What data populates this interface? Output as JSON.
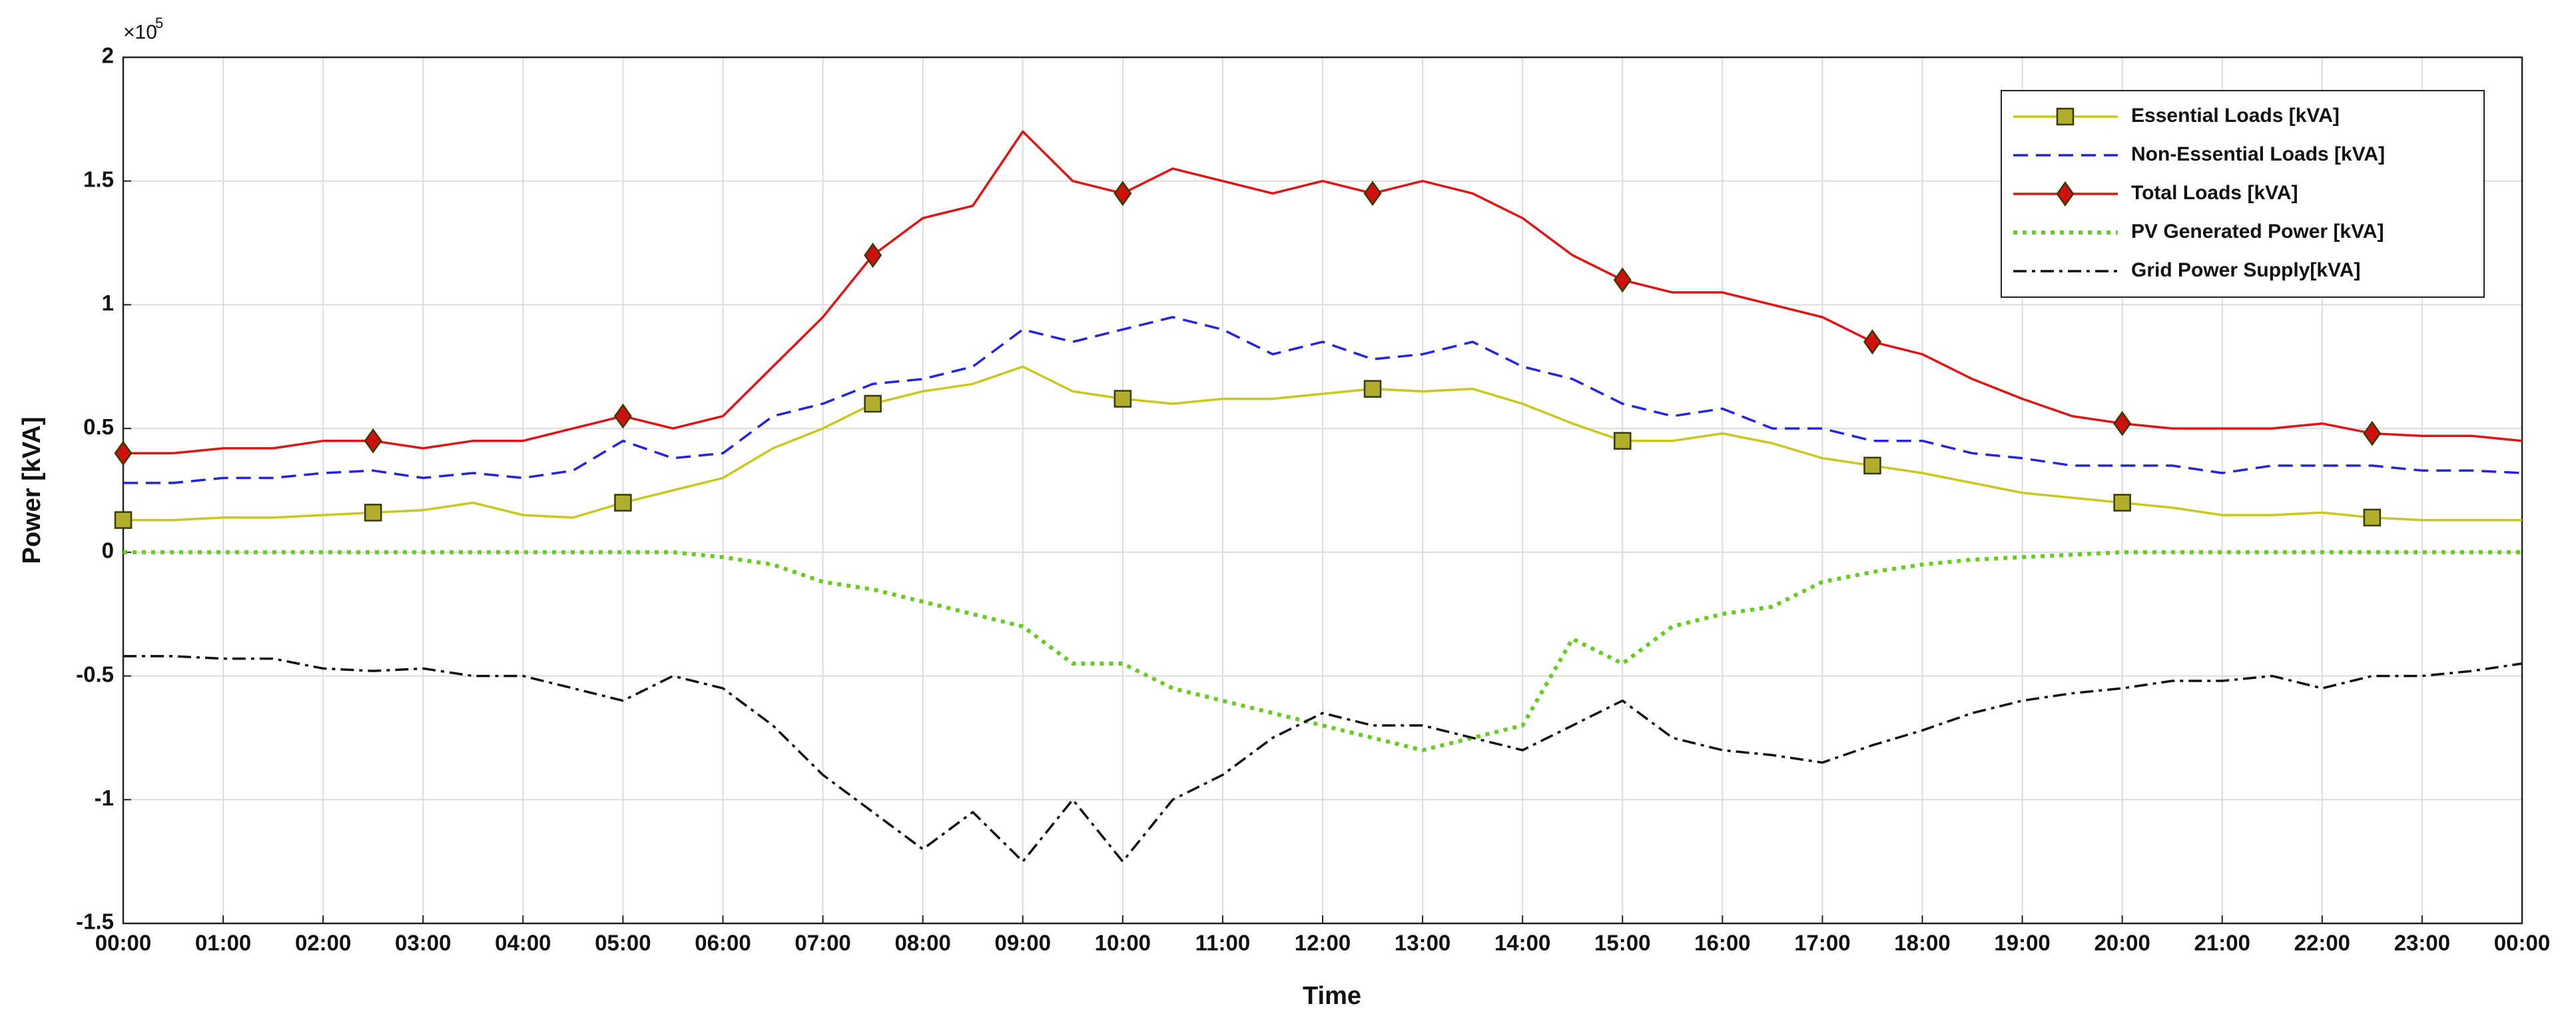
{
  "chart_data": {
    "type": "line",
    "xlabel": "Time",
    "ylabel": "Power [kVA]",
    "yscale_text": "×10",
    "yscale_exponent": "5",
    "x": [
      0,
      0.5,
      1,
      1.5,
      2,
      2.5,
      3,
      3.5,
      4,
      4.5,
      5,
      5.5,
      6,
      6.5,
      7,
      7.5,
      8,
      8.5,
      9,
      9.5,
      10,
      10.5,
      11,
      11.5,
      12,
      12.5,
      13,
      13.5,
      14,
      14.5,
      15,
      15.5,
      16,
      16.5,
      17,
      17.5,
      18,
      18.5,
      19,
      19.5,
      20,
      20.5,
      21,
      21.5,
      22,
      22.5,
      23,
      23.5,
      24
    ],
    "xlim": [
      0,
      24
    ],
    "xticks": [
      {
        "value": 0,
        "label": "00:00"
      },
      {
        "value": 1,
        "label": "01:00"
      },
      {
        "value": 2,
        "label": "02:00"
      },
      {
        "value": 3,
        "label": "03:00"
      },
      {
        "value": 4,
        "label": "04:00"
      },
      {
        "value": 5,
        "label": "05:00"
      },
      {
        "value": 6,
        "label": "06:00"
      },
      {
        "value": 7,
        "label": "07:00"
      },
      {
        "value": 8,
        "label": "08:00"
      },
      {
        "value": 9,
        "label": "09:00"
      },
      {
        "value": 10,
        "label": "10:00"
      },
      {
        "value": 11,
        "label": "11:00"
      },
      {
        "value": 12,
        "label": "12:00"
      },
      {
        "value": 13,
        "label": "13:00"
      },
      {
        "value": 14,
        "label": "14:00"
      },
      {
        "value": 15,
        "label": "15:00"
      },
      {
        "value": 16,
        "label": "16:00"
      },
      {
        "value": 17,
        "label": "17:00"
      },
      {
        "value": 18,
        "label": "18:00"
      },
      {
        "value": 19,
        "label": "19:00"
      },
      {
        "value": 20,
        "label": "20:00"
      },
      {
        "value": 21,
        "label": "21:00"
      },
      {
        "value": 22,
        "label": "22:00"
      },
      {
        "value": 23,
        "label": "23:00"
      },
      {
        "value": 24,
        "label": "00:00"
      }
    ],
    "ylim": [
      -1.5,
      2
    ],
    "yticks": [
      -1.5,
      -1,
      -0.5,
      0,
      0.5,
      1,
      1.5,
      2
    ],
    "grid": true,
    "legend_position": "northeast",
    "marker_every": 5,
    "series": [
      {
        "name": "Essential Loads [kVA]",
        "color": "#c8c81e",
        "marker_color": "#b0ae2a",
        "line_style": "solid",
        "marker": "square",
        "values": [
          0.13,
          0.13,
          0.14,
          0.14,
          0.15,
          0.16,
          0.17,
          0.2,
          0.15,
          0.14,
          0.2,
          0.25,
          0.3,
          0.42,
          0.5,
          0.6,
          0.65,
          0.68,
          0.75,
          0.65,
          0.62,
          0.6,
          0.62,
          0.62,
          0.64,
          0.66,
          0.65,
          0.66,
          0.6,
          0.52,
          0.45,
          0.45,
          0.48,
          0.44,
          0.38,
          0.35,
          0.32,
          0.28,
          0.24,
          0.22,
          0.2,
          0.18,
          0.15,
          0.15,
          0.16,
          0.14,
          0.13,
          0.13,
          0.13
        ]
      },
      {
        "name": "Non-Essential Loads [kVA]",
        "color": "#2424e0",
        "line_style": "dashed",
        "marker": "none",
        "values": [
          0.28,
          0.28,
          0.3,
          0.3,
          0.32,
          0.33,
          0.3,
          0.32,
          0.3,
          0.33,
          0.45,
          0.38,
          0.4,
          0.55,
          0.6,
          0.68,
          0.7,
          0.75,
          0.9,
          0.85,
          0.9,
          0.95,
          0.9,
          0.8,
          0.85,
          0.78,
          0.8,
          0.85,
          0.75,
          0.7,
          0.6,
          0.55,
          0.58,
          0.5,
          0.5,
          0.45,
          0.45,
          0.4,
          0.38,
          0.35,
          0.35,
          0.35,
          0.32,
          0.35,
          0.35,
          0.35,
          0.33,
          0.33,
          0.32
        ]
      },
      {
        "name": "Total Loads [kVA]",
        "color": "#e01414",
        "marker_color": "#d01010",
        "line_style": "solid",
        "marker": "diamond",
        "values": [
          0.4,
          0.4,
          0.42,
          0.42,
          0.45,
          0.45,
          0.42,
          0.45,
          0.45,
          0.5,
          0.55,
          0.5,
          0.55,
          0.75,
          0.95,
          1.2,
          1.35,
          1.4,
          1.7,
          1.5,
          1.45,
          1.55,
          1.5,
          1.45,
          1.5,
          1.45,
          1.5,
          1.45,
          1.35,
          1.2,
          1.1,
          1.05,
          1.05,
          1.0,
          0.95,
          0.85,
          0.8,
          0.7,
          0.62,
          0.55,
          0.52,
          0.5,
          0.5,
          0.5,
          0.52,
          0.48,
          0.47,
          0.47,
          0.45
        ]
      },
      {
        "name": "PV Generated Power [kVA]",
        "color": "#66cc22",
        "line_style": "dotted",
        "marker": "none",
        "values": [
          0,
          0,
          0,
          0,
          0,
          0,
          0,
          0,
          0,
          0,
          0,
          0,
          -0.02,
          -0.05,
          -0.12,
          -0.15,
          -0.2,
          -0.25,
          -0.3,
          -0.45,
          -0.45,
          -0.55,
          -0.6,
          -0.65,
          -0.7,
          -0.75,
          -0.8,
          -0.75,
          -0.7,
          -0.35,
          -0.45,
          -0.3,
          -0.25,
          -0.22,
          -0.12,
          -0.08,
          -0.05,
          -0.03,
          -0.02,
          -0.01,
          0,
          0,
          0,
          0,
          0,
          0,
          0,
          0,
          0
        ]
      },
      {
        "name": "Grid Power Supply[kVA]",
        "color": "#111111",
        "line_style": "dashdot",
        "marker": "none",
        "values": [
          -0.42,
          -0.42,
          -0.43,
          -0.43,
          -0.47,
          -0.48,
          -0.47,
          -0.5,
          -0.5,
          -0.55,
          -0.6,
          -0.5,
          -0.55,
          -0.7,
          -0.9,
          -1.05,
          -1.2,
          -1.05,
          -1.25,
          -1.0,
          -1.25,
          -1.0,
          -0.9,
          -0.75,
          -0.65,
          -0.7,
          -0.7,
          -0.75,
          -0.8,
          -0.7,
          -0.6,
          -0.75,
          -0.8,
          -0.82,
          -0.85,
          -0.78,
          -0.72,
          -0.65,
          -0.6,
          -0.57,
          -0.55,
          -0.52,
          -0.52,
          -0.5,
          -0.55,
          -0.5,
          -0.5,
          -0.48,
          -0.45
        ]
      }
    ]
  }
}
